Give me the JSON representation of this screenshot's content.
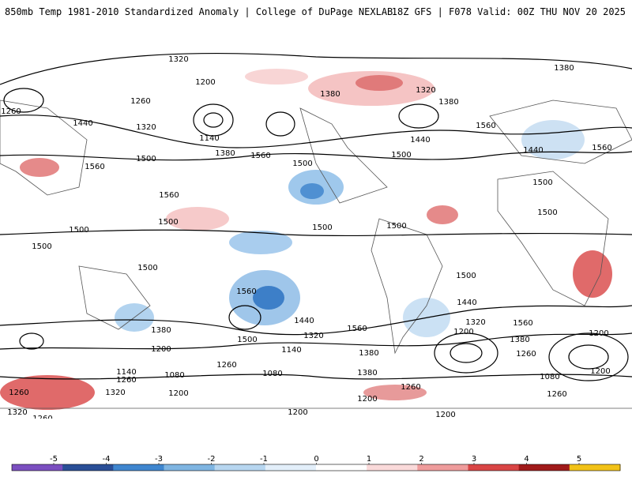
{
  "header": {
    "title": "850mb Temp 1981-2010 Standardized Anomaly | College of DuPage NEXLAB",
    "run_info": "18Z GFS | F078 Valid: 00Z THU NOV 20 2025"
  },
  "map": {
    "contour_labels": [
      "1320",
      "1380",
      "1200",
      "1260",
      "1440",
      "1320",
      "1260",
      "1140",
      "1380",
      "1500",
      "1560",
      "1500",
      "1380",
      "1320",
      "1380",
      "1440",
      "1560",
      "1500",
      "1560",
      "1440",
      "1560",
      "1500",
      "1500",
      "1500",
      "1560",
      "1500",
      "1500",
      "1500",
      "1500",
      "1500",
      "1560",
      "1500",
      "1440",
      "1320",
      "1380",
      "1440",
      "1560",
      "1500",
      "1380",
      "1320",
      "1200",
      "1260",
      "1560",
      "1380",
      "1200",
      "1140",
      "1200",
      "1260",
      "1080",
      "1260",
      "1140",
      "1080",
      "1260",
      "1200",
      "1200",
      "1080",
      "1320",
      "1260",
      "1260",
      "1320",
      "1260",
      "1200",
      "1200",
      "1200",
      "1380"
    ]
  },
  "colorbar": {
    "ticks": [
      "-5",
      "-4",
      "-3",
      "-2",
      "-1",
      "0",
      "1",
      "2",
      "3",
      "4",
      "5"
    ],
    "colors": [
      "#7b4fc0",
      "#2a4f97",
      "#3f86cf",
      "#7fb5e2",
      "#b7d6f0",
      "#e3effa",
      "#ffffff",
      "#fadada",
      "#ef9c9c",
      "#d94545",
      "#a01a1a",
      "#f2c218"
    ]
  }
}
